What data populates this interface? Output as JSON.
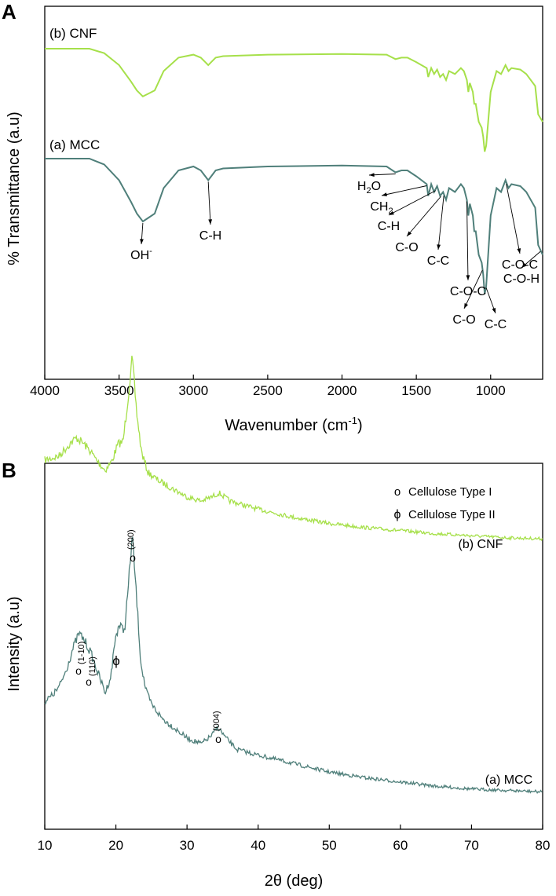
{
  "colors": {
    "cnf": "#a6e04a",
    "mcc": "#4f7f7a",
    "axis": "#000000"
  },
  "chart_data": [
    {
      "panel": "A",
      "type": "line",
      "xlabel": "Wavenumber (cm",
      "xlabel_sup": "-1",
      "xlabel_end": ")",
      "ylabel": "% Transmittance (a.u)",
      "xlim": [
        4000,
        650
      ],
      "x_reversed": true,
      "y_ticks_shown": false,
      "xticks": [
        4000,
        3500,
        3000,
        2500,
        2000,
        1500,
        1000
      ],
      "series": [
        {
          "name": "(b) CNF",
          "color": "#a6e04a",
          "x": [
            4000,
            3700,
            3600,
            3500,
            3420,
            3380,
            3340,
            3300,
            3260,
            3200,
            3100,
            3000,
            2950,
            2920,
            2900,
            2880,
            2850,
            2800,
            2500,
            2000,
            1700,
            1640,
            1600,
            1560,
            1500,
            1430,
            1420,
            1400,
            1380,
            1360,
            1340,
            1320,
            1300,
            1280,
            1240,
            1200,
            1180,
            1160,
            1150,
            1140,
            1120,
            1110,
            1100,
            1080,
            1060,
            1050,
            1040,
            1030,
            1020,
            1000,
            960,
            930,
            900,
            880,
            860,
            800,
            760,
            700,
            680,
            650
          ],
          "y": [
            99,
            99,
            96,
            88,
            77,
            71,
            67,
            69,
            71,
            84,
            93,
            95,
            93,
            90,
            88,
            90,
            93,
            94,
            95,
            95.5,
            95,
            92,
            93,
            93,
            90,
            86,
            80,
            86,
            82,
            85,
            80,
            82,
            78,
            84,
            82,
            86,
            84,
            78,
            70,
            76,
            70,
            62,
            62,
            50,
            46,
            40,
            30,
            34,
            46,
            70,
            84,
            82,
            88,
            84,
            86,
            85,
            82,
            74,
            55,
            50
          ]
        },
        {
          "name": "(a) MCC",
          "color": "#4f7f7a",
          "x": [
            4000,
            3700,
            3600,
            3500,
            3420,
            3380,
            3340,
            3300,
            3260,
            3200,
            3100,
            3000,
            2950,
            2920,
            2900,
            2880,
            2850,
            2800,
            2500,
            2000,
            1700,
            1640,
            1600,
            1560,
            1500,
            1430,
            1420,
            1400,
            1380,
            1360,
            1340,
            1320,
            1300,
            1280,
            1240,
            1200,
            1180,
            1160,
            1150,
            1140,
            1120,
            1110,
            1100,
            1080,
            1060,
            1050,
            1040,
            1030,
            1020,
            1000,
            960,
            930,
            900,
            880,
            860,
            800,
            760,
            700,
            680,
            650
          ],
          "y": [
            99,
            99,
            96,
            88,
            77,
            71,
            67,
            69,
            71,
            84,
            93,
            95,
            93,
            90,
            88,
            90,
            93,
            94,
            95,
            95.5,
            95,
            92,
            93,
            93,
            90,
            86,
            80,
            86,
            82,
            85,
            80,
            82,
            78,
            84,
            82,
            86,
            84,
            78,
            70,
            76,
            70,
            62,
            62,
            50,
            46,
            40,
            30,
            34,
            46,
            70,
            84,
            82,
            88,
            84,
            86,
            85,
            82,
            74,
            55,
            50
          ]
        }
      ],
      "annotations": [
        {
          "label": "OH",
          "sup": "-",
          "x": 3340
        },
        {
          "label": "C-H",
          "x": 2900
        },
        {
          "label": "H",
          "sub": "2",
          "end": "O",
          "x": 1640
        },
        {
          "label": "CH",
          "sub": "2",
          "x": 1430
        },
        {
          "label": "C-H",
          "x": 1370
        },
        {
          "label": "C-O",
          "x": 1335
        },
        {
          "label": "C-C",
          "x": 1315
        },
        {
          "label": "C-O-C",
          "x": 1160
        },
        {
          "label": "C-O",
          "x": 1055
        },
        {
          "label": "C-C",
          "x": 1030
        },
        {
          "label": "C-O-C",
          "x": 895
        },
        {
          "label": "C-O-H",
          "x": 665
        }
      ]
    },
    {
      "panel": "B",
      "type": "line",
      "xlabel": "2θ (deg)",
      "ylabel": "Intensity (a.u)",
      "xlim": [
        10,
        80
      ],
      "y_ticks_shown": false,
      "xticks": [
        10,
        20,
        30,
        40,
        50,
        60,
        70,
        80
      ],
      "legend_position": "top-right",
      "legend": [
        {
          "symbol": "o",
          "label": "Cellulose Type I"
        },
        {
          "symbol": "ϕ",
          "label": "Cellulose Type II"
        }
      ],
      "series": [
        {
          "name": "(b) CNF",
          "color": "#a6e04a",
          "x": [
            10,
            12,
            13.5,
            14.5,
            15.5,
            16.5,
            17.5,
            18.5,
            19.5,
            20.3,
            21,
            21.7,
            22.3,
            22.9,
            23.6,
            24.5,
            26,
            28,
            30,
            32,
            33.5,
            34.5,
            36,
            40,
            45,
            50,
            55,
            60,
            65,
            70,
            75,
            80
          ],
          "y": [
            40,
            42,
            48,
            51,
            48,
            44,
            39,
            35,
            40,
            48,
            49,
            70,
            90,
            64,
            44,
            34,
            30,
            26,
            22,
            20,
            22,
            24,
            20,
            16,
            12,
            9,
            7,
            5.5,
            4,
            3,
            2,
            1.5
          ]
        },
        {
          "name": "(a) MCC",
          "color": "#4f7f7a",
          "x": [
            10,
            11,
            12,
            13,
            14,
            14.8,
            15.5,
            16.5,
            17.5,
            18.5,
            19.3,
            19.9,
            20.4,
            21.2,
            21.7,
            22.3,
            22.9,
            23.5,
            24.2,
            25,
            26.5,
            28,
            30,
            32,
            33.5,
            34.3,
            35.5,
            37,
            40,
            45,
            50,
            55,
            60,
            65,
            70,
            75,
            80
          ],
          "y": [
            33,
            35,
            38,
            44,
            52,
            57,
            55,
            50,
            43,
            36,
            42,
            55,
            60,
            58,
            72,
            92,
            70,
            47,
            37,
            32,
            27,
            24,
            20,
            18,
            21,
            24,
            20,
            16,
            14,
            11,
            8,
            6,
            4.5,
            3,
            2,
            1.5,
            1
          ]
        }
      ],
      "annotations": [
        {
          "symbol": "o",
          "label": "(1-10)",
          "x": 14.8
        },
        {
          "symbol": "o",
          "label": "(110)",
          "x": 16.2
        },
        {
          "symbol": "ϕ",
          "label": "",
          "x": 20.0
        },
        {
          "symbol": "o",
          "label": "(200)",
          "x": 22.6
        },
        {
          "symbol": "o",
          "label": "(004)",
          "x": 34.4
        }
      ]
    }
  ]
}
